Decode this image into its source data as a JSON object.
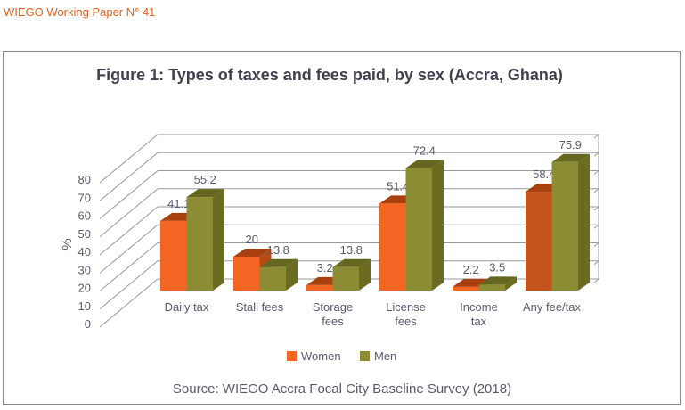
{
  "header": {
    "text": "WIEGO Working Paper N° 41"
  },
  "chart_data": {
    "type": "bar",
    "title": "Figure 1: Types of taxes and fees paid, by sex (Accra, Ghana)",
    "xlabel": "",
    "ylabel": "%",
    "ylim": [
      0,
      80
    ],
    "yticks": [
      "0",
      "10",
      "20",
      "30",
      "40",
      "50",
      "60",
      "70",
      "80"
    ],
    "categories": [
      [
        "Daily tax"
      ],
      [
        "Stall fees"
      ],
      [
        "Storage",
        "fees"
      ],
      [
        "License",
        "fees"
      ],
      [
        "Income",
        "tax"
      ],
      [
        "Any fee/tax"
      ]
    ],
    "series": [
      {
        "name": "Women",
        "color": "#f26522",
        "values": [
          41.1,
          20,
          3.2,
          51.4,
          2.2,
          58.4
        ],
        "labels": [
          "41.1",
          "20",
          "3.2",
          "51.4",
          "2.2",
          "58.4"
        ]
      },
      {
        "name": "Men",
        "color": "#8b8c33",
        "values": [
          55.2,
          13.8,
          13.8,
          72.4,
          3.5,
          75.9
        ],
        "labels": [
          "55.2",
          "13.8",
          "13.8",
          "72.4",
          "3.5",
          "75.9"
        ]
      }
    ],
    "highlight_color": "#c4531c",
    "legend": "bottom",
    "grid": true,
    "source": "Source: WIEGO Accra Focal City Baseline Survey (2018)"
  }
}
